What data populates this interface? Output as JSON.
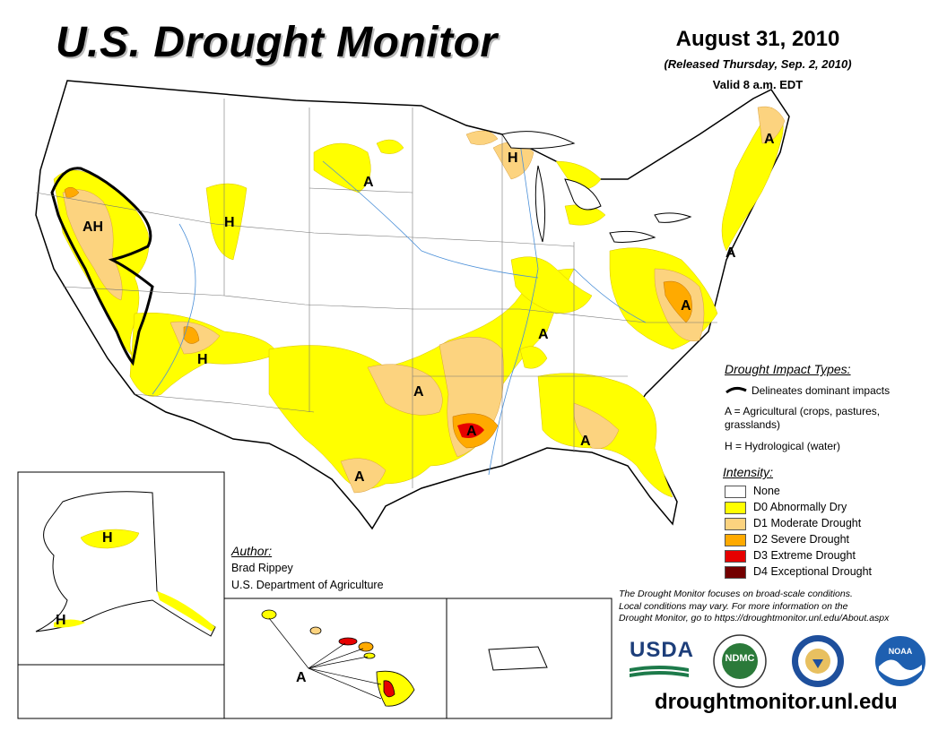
{
  "header": {
    "title": "U.S. Drought Monitor",
    "date": "August 31, 2010",
    "released": "(Released Thursday, Sep. 2, 2010)",
    "valid": "Valid 8 a.m. EDT"
  },
  "impact_legend": {
    "heading": "Drought Impact Types:",
    "delineates": "Delineates dominant impacts",
    "agricultural": "A = Agricultural (crops, pastures, grasslands)",
    "agricultural_line1": "A = Agricultural (crops, pastures,",
    "agricultural_line2": "grasslands)",
    "hydrological": "H = Hydrological (water)"
  },
  "intensity_legend": {
    "heading": "Intensity:",
    "items": [
      {
        "label": "None",
        "color": "#ffffff"
      },
      {
        "label": "D0 Abnormally Dry",
        "color": "#ffff00"
      },
      {
        "label": "D1 Moderate Drought",
        "color": "#fcd37f"
      },
      {
        "label": "D2 Severe Drought",
        "color": "#ffaa00"
      },
      {
        "label": "D3 Extreme Drought",
        "color": "#e60000"
      },
      {
        "label": "D4 Exceptional Drought",
        "color": "#730000"
      }
    ]
  },
  "author": {
    "heading": "Author:",
    "name": "Brad Rippey",
    "org": "U.S. Department of Agriculture"
  },
  "note": {
    "line1": "The Drought Monitor focuses on broad-scale conditions.",
    "line2": "Local conditions may vary. For more information on the",
    "line3": "Drought Monitor, go to https://droughtmonitor.unl.edu/About.aspx"
  },
  "map_labels": {
    "ah_west": "AH",
    "h_idaho": "H",
    "a_dakota": "A",
    "h_michigan": "H",
    "a_maine": "A",
    "a_nj": "A",
    "a_virginia": "A",
    "h_arizona": "H",
    "a_oklahoma": "A",
    "a_kentucky": "A",
    "a_louisiana": "A",
    "a_georgia": "A",
    "a_texas": "A",
    "h_alaska": "H",
    "h_alaska_sw": "H",
    "a_hawaii": "A"
  },
  "logos": {
    "usda": "USDA",
    "ndmc": "NDMC",
    "noaa": "NOAA"
  },
  "footer": {
    "url": "droughtmonitor.unl.edu"
  }
}
